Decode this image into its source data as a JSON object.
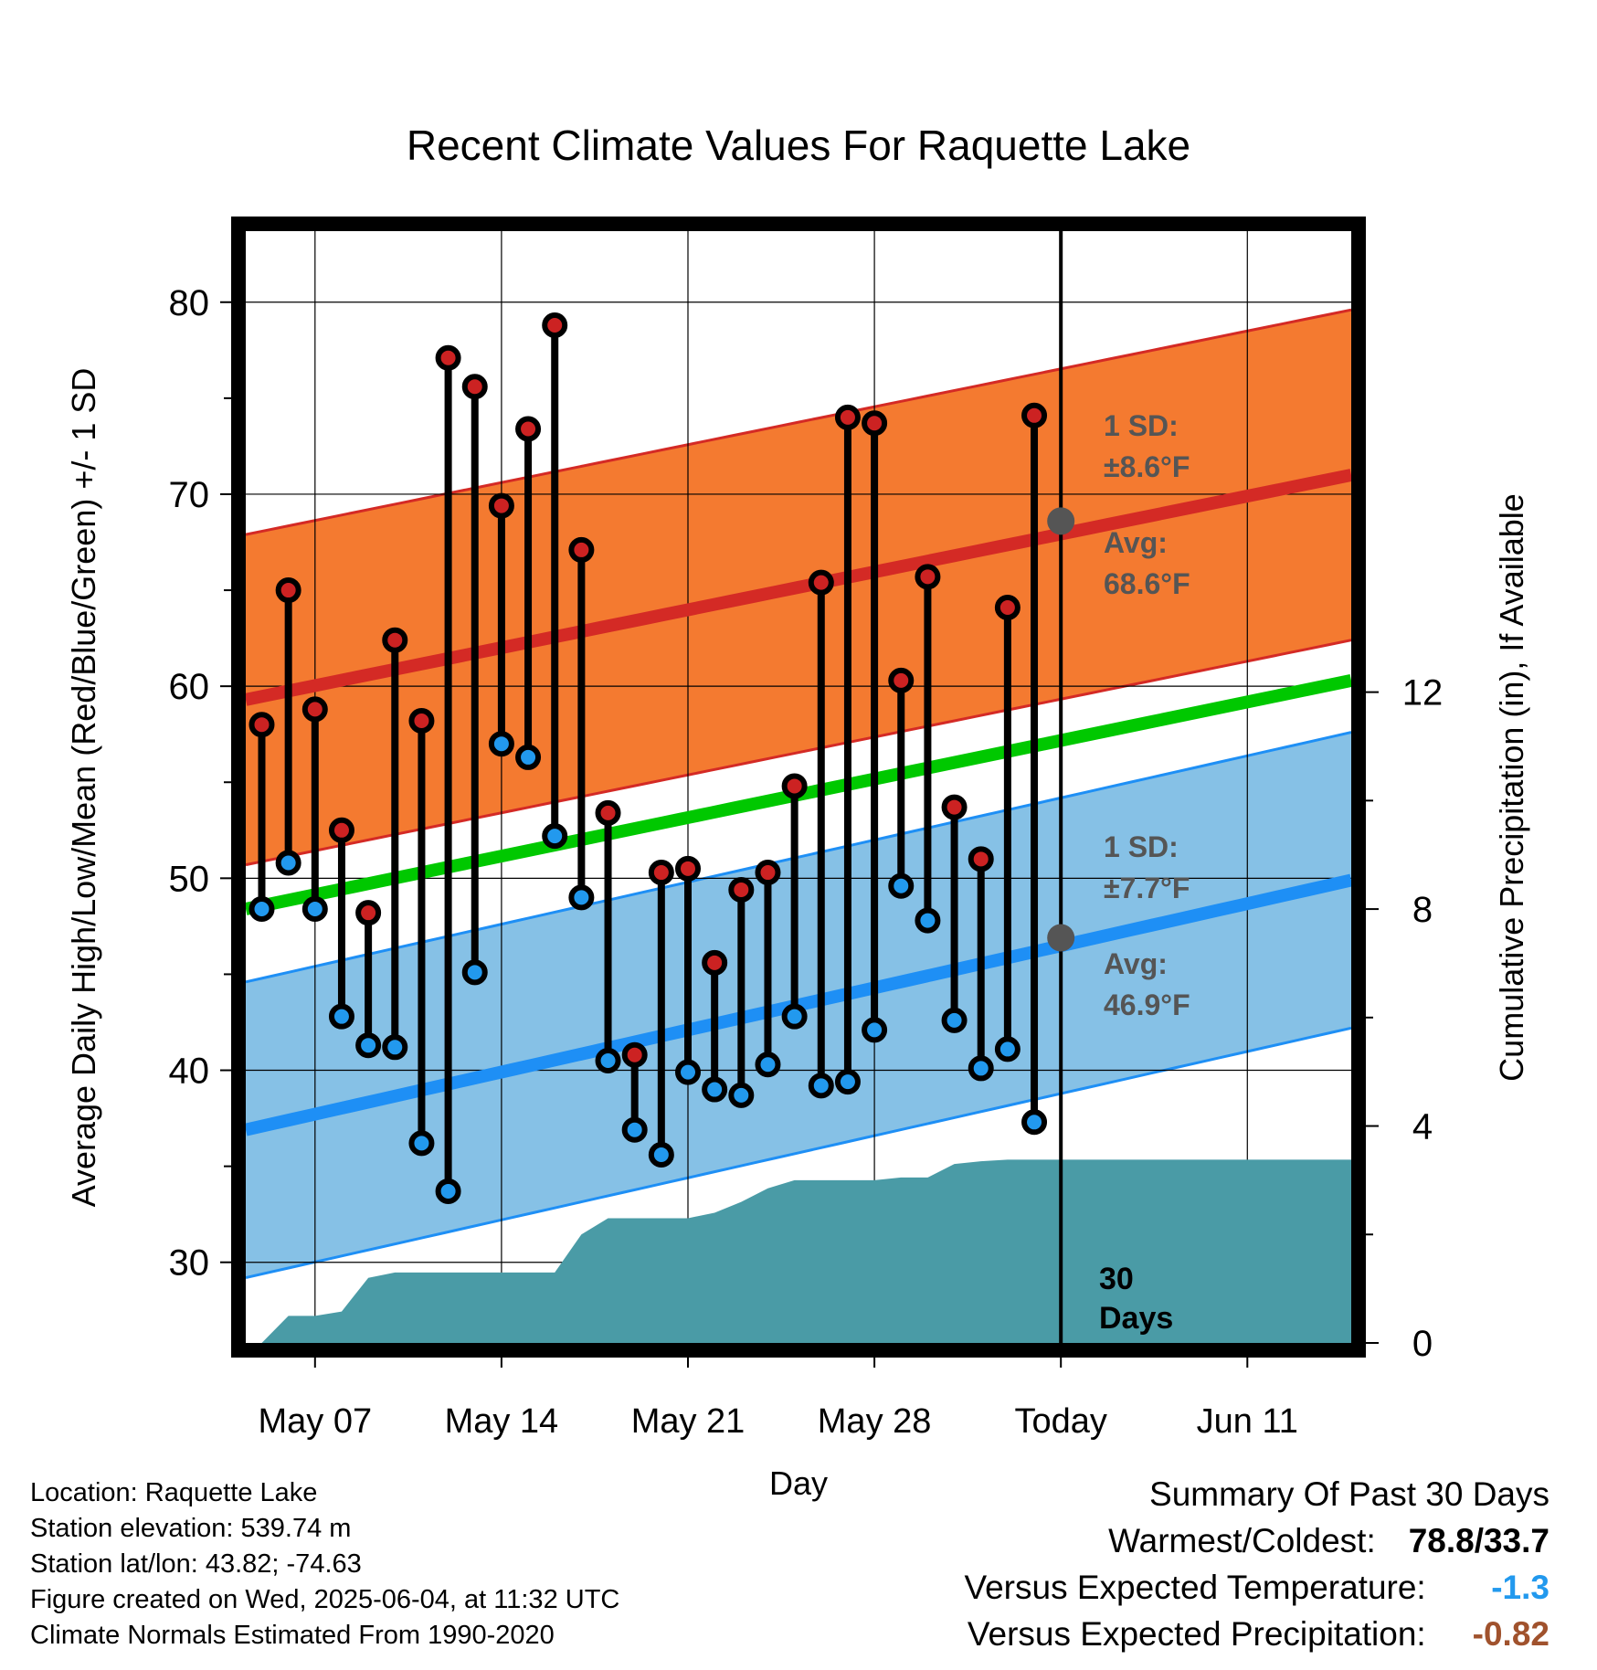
{
  "title": "Recent Climate Values For Raquette Lake",
  "x_axis_label": "Day",
  "y_left_label": "Average Daily High/Low/Mean (Red/Blue/Green) +/- 1 SD",
  "y_right_label": "Cumulative Precipitation (in), If Available",
  "x_tick_labels": [
    "May 07",
    "May 14",
    "May 21",
    "May 28",
    "Today",
    "Jun 11"
  ],
  "y_left_ticks": [
    "30",
    "40",
    "50",
    "60",
    "70",
    "80"
  ],
  "y_right_ticks": [
    "0",
    "4",
    "8",
    "12"
  ],
  "annotations": {
    "high_sd": "1 SD:",
    "high_sd_value": "±8.6°F",
    "high_avg": "Avg:",
    "high_avg_value": "68.6°F",
    "low_sd": "1 SD:",
    "low_sd_value": "±7.7°F",
    "low_avg": "Avg:",
    "low_avg_value": "46.9°F",
    "days_num": "30",
    "days_word": "Days"
  },
  "footer_left": {
    "location": "Location: Raquette Lake",
    "elevation": "Station elevation: 539.74 m",
    "latlon": "Station lat/lon: 43.82; -74.63",
    "created": "Figure created on Wed, 2025-06-04, at 11:32 UTC",
    "normals": "Climate Normals Estimated From 1990-2020"
  },
  "footer_right": {
    "heading": "Summary Of Past 30 Days",
    "warm_label": "Warmest/Coldest:",
    "warm_value": "78.8/33.7",
    "temp_label": "Versus Expected Temperature:",
    "temp_value": "-1.3",
    "precip_label": "Versus Expected Precipitation:",
    "precip_value": "-0.82"
  },
  "colors": {
    "high_band": "#f47a30",
    "high_line": "#d42a25",
    "low_band": "#86c1e6",
    "low_line": "#1e8ff5",
    "mean_line": "#00c800",
    "precip": "#4a9ba6",
    "high_dot": "#cc2222",
    "low_dot": "#2299ee",
    "temp_value": "#2299ee",
    "precip_value": "#a0522d",
    "avg_marker": "#555555"
  },
  "chart_data": {
    "type": "line",
    "x_start_date": "2025-05-05",
    "x_range_days": [
      -0.6,
      40.9
    ],
    "today_index": 30,
    "ylim": [
      25.8,
      83.7
    ],
    "y2lim": [
      0,
      20.5
    ],
    "grid": true,
    "normals": {
      "high_avg": [
        59.3,
        71.0
      ],
      "high_sd": 8.6,
      "low_avg": [
        36.9,
        49.9
      ],
      "low_sd": 7.7,
      "mean_avg": [
        48.4,
        60.3
      ]
    },
    "today_high_avg": 68.6,
    "today_low_avg": 46.9,
    "daily_high": [
      58.0,
      65.0,
      58.8,
      52.5,
      48.2,
      62.4,
      58.2,
      77.1,
      75.6,
      69.4,
      73.4,
      78.8,
      67.1,
      53.4,
      40.8,
      50.3,
      50.5,
      45.6,
      49.4,
      50.3,
      54.8,
      65.4,
      74.0,
      73.7,
      60.3,
      65.7,
      53.7,
      51.0,
      64.1,
      74.1
    ],
    "daily_low": [
      48.4,
      50.8,
      48.4,
      42.8,
      41.3,
      41.2,
      36.2,
      33.7,
      45.1,
      57.0,
      56.3,
      52.2,
      49.0,
      40.5,
      36.9,
      35.6,
      39.9,
      39.0,
      38.7,
      40.3,
      42.8,
      39.2,
      39.4,
      42.1,
      49.6,
      47.8,
      42.6,
      40.1,
      41.1,
      37.3
    ],
    "cumulative_precip": [
      [
        0,
        0.0
      ],
      [
        1,
        0.5
      ],
      [
        2,
        0.5
      ],
      [
        3,
        0.58
      ],
      [
        4,
        1.2
      ],
      [
        5,
        1.3
      ],
      [
        6,
        1.3
      ],
      [
        7,
        1.3
      ],
      [
        8,
        1.3
      ],
      [
        9,
        1.3
      ],
      [
        10,
        1.3
      ],
      [
        11,
        1.3
      ],
      [
        12,
        2.0
      ],
      [
        13,
        2.3
      ],
      [
        14,
        2.3
      ],
      [
        15,
        2.3
      ],
      [
        16,
        2.3
      ],
      [
        17,
        2.4
      ],
      [
        18,
        2.6
      ],
      [
        19,
        2.85
      ],
      [
        20,
        3.0
      ],
      [
        21,
        3.0
      ],
      [
        22,
        3.0
      ],
      [
        23,
        3.0
      ],
      [
        24,
        3.05
      ],
      [
        25,
        3.05
      ],
      [
        26,
        3.3
      ],
      [
        27,
        3.35
      ],
      [
        28,
        3.38
      ],
      [
        29,
        3.38
      ],
      [
        30,
        3.38
      ],
      [
        40.9,
        3.38
      ]
    ]
  }
}
